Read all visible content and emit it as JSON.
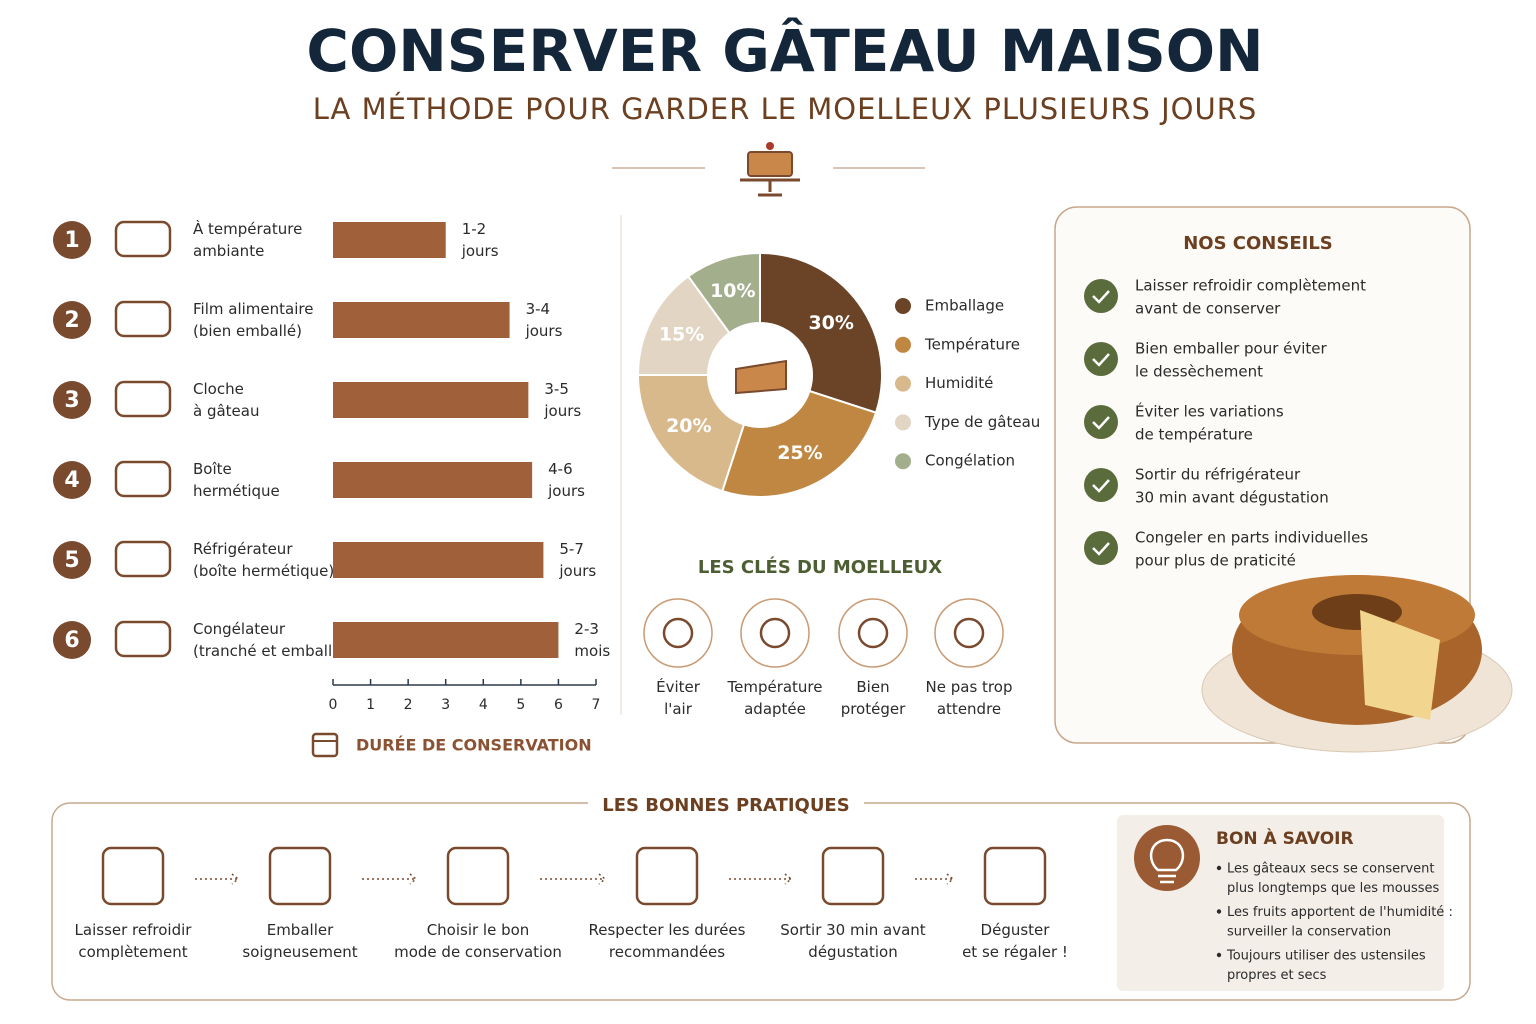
{
  "header": {
    "title": "CONSERVER GÂTEAU MAISON",
    "subtitle": "LA MÉTHODE POUR GARDER LE MOELLEUX PLUSIEURS JOURS"
  },
  "chart_data": [
    {
      "type": "bar",
      "orientation": "horizontal",
      "item_numbers": [
        "1",
        "2",
        "3",
        "4",
        "5",
        "6"
      ],
      "categories": [
        "À température\nambiante",
        "Film alimentaire\n(bien emballé)",
        "Cloche\nà gâteau",
        "Boîte\nhermétique",
        "Réfrigérateur\n(boîte hermétique)",
        "Congélateur\n(tranché et emballé)"
      ],
      "values": [
        3,
        4.7,
        5.2,
        5.3,
        5.6,
        6
      ],
      "duration_labels": [
        "1-2\njours",
        "3-4\njours",
        "3-5\njours",
        "4-6\njours",
        "5-7\njours",
        "2-3\nmois"
      ],
      "color": "#a0613a",
      "xlim": [
        0,
        7
      ],
      "xticks": [
        0,
        1,
        2,
        3,
        4,
        5,
        6,
        7
      ],
      "xlabel": "DURÉE DE CONSERVATION"
    },
    {
      "type": "donut",
      "categories": [
        "Emballage",
        "Température",
        "Humidité",
        "Type de gâteau",
        "Congélation"
      ],
      "values": [
        30,
        25,
        20,
        15,
        10
      ],
      "value_labels": [
        "30%",
        "25%",
        "20%",
        "15%",
        "10%"
      ],
      "colors": [
        "#6b4427",
        "#c08743",
        "#d8b98c",
        "#e2d5c4",
        "#a3ae8c"
      ]
    }
  ],
  "keys": {
    "title": "LES CLÉS DU MOELLEUX",
    "items": [
      "Éviter\nl'air",
      "Température\nadaptée",
      "Bien\nprotéger",
      "Ne pas trop\nattendre"
    ]
  },
  "tips": {
    "title": "NOS CONSEILS",
    "items": [
      "Laisser refroidir complètement\navant de conserver",
      "Bien emballer pour éviter\nle dessèchement",
      "Éviter les variations\nde température",
      "Sortir du réfrigérateur\n30 min avant dégustation",
      "Congeler en parts individuelles\npour plus de praticité"
    ]
  },
  "practices": {
    "title": "LES BONNES PRATIQUES",
    "steps": [
      "Laisser refroidir\ncomplètement",
      "Emballer\nsoigneusement",
      "Choisir le bon\nmode de conservation",
      "Respecter les durées\nrecommandées",
      "Sortir 30 min avant\ndégustation",
      "Déguster\net se régaler !"
    ]
  },
  "good_to_know": {
    "title": "BON À SAVOIR",
    "items": [
      "Les gâteaux secs se conservent\nplus longtemps que les mousses",
      "Les fruits apportent de l'humidité :\nsurveiller la conservation",
      "Toujours utiliser des ustensiles\npropres et secs"
    ]
  }
}
